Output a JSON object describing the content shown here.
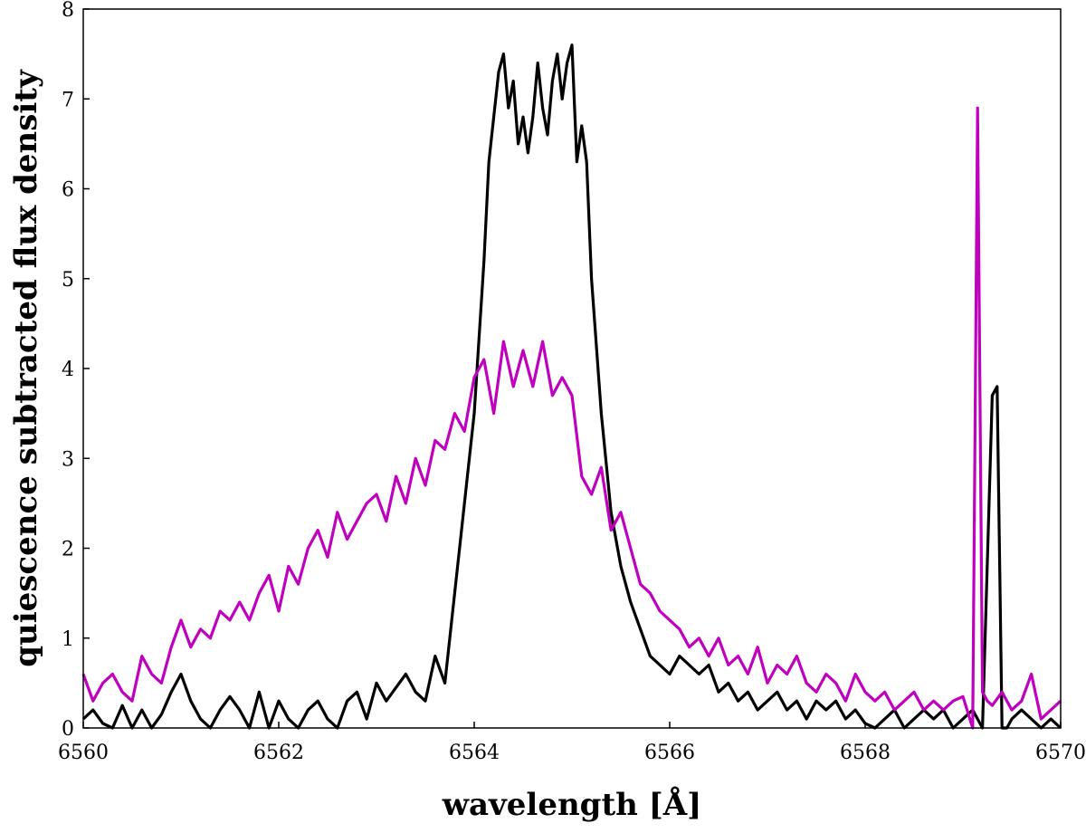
{
  "chart_data": {
    "type": "line",
    "title": "",
    "xlabel": "wavelength [Å]",
    "ylabel": "quiescence subtracted flux density",
    "xlim": [
      6560,
      6570
    ],
    "ylim": [
      0,
      8
    ],
    "xticks": [
      6560,
      6562,
      6564,
      6566,
      6568,
      6570
    ],
    "yticks": [
      0,
      1,
      2,
      3,
      4,
      5,
      6,
      7,
      8
    ],
    "grid": false,
    "legend": "none",
    "series": [
      {
        "color": "#000000",
        "x": [
          6560.0,
          6560.1,
          6560.2,
          6560.3,
          6560.4,
          6560.5,
          6560.6,
          6560.7,
          6560.8,
          6560.9,
          6561.0,
          6561.1,
          6561.2,
          6561.3,
          6561.4,
          6561.5,
          6561.6,
          6561.7,
          6561.8,
          6561.9,
          6562.0,
          6562.1,
          6562.2,
          6562.3,
          6562.4,
          6562.5,
          6562.6,
          6562.7,
          6562.8,
          6562.9,
          6563.0,
          6563.1,
          6563.2,
          6563.3,
          6563.4,
          6563.5,
          6563.6,
          6563.7,
          6563.8,
          6563.9,
          6564.0,
          6564.1,
          6564.15,
          6564.2,
          6564.25,
          6564.3,
          6564.35,
          6564.4,
          6564.45,
          6564.5,
          6564.55,
          6564.6,
          6564.65,
          6564.7,
          6564.75,
          6564.8,
          6564.85,
          6564.9,
          6564.95,
          6565.0,
          6565.05,
          6565.1,
          6565.15,
          6565.2,
          6565.3,
          6565.4,
          6565.5,
          6565.6,
          6565.7,
          6565.8,
          6565.9,
          6566.0,
          6566.1,
          6566.2,
          6566.3,
          6566.4,
          6566.5,
          6566.6,
          6566.7,
          6566.8,
          6566.9,
          6567.0,
          6567.1,
          6567.2,
          6567.3,
          6567.4,
          6567.5,
          6567.6,
          6567.7,
          6567.8,
          6567.9,
          6568.0,
          6568.1,
          6568.2,
          6568.3,
          6568.4,
          6568.5,
          6568.6,
          6568.7,
          6568.8,
          6568.9,
          6569.0,
          6569.1,
          6569.2,
          6569.3,
          6569.35,
          6569.4,
          6569.45,
          6569.5,
          6569.6,
          6569.7,
          6569.8,
          6569.9,
          6570.0
        ],
        "y": [
          0.1,
          0.2,
          0.05,
          0.0,
          0.25,
          0.0,
          0.2,
          0.0,
          0.15,
          0.4,
          0.6,
          0.3,
          0.1,
          0.0,
          0.2,
          0.35,
          0.2,
          0.0,
          0.4,
          0.0,
          0.3,
          0.1,
          0.0,
          0.2,
          0.3,
          0.1,
          0.0,
          0.3,
          0.4,
          0.1,
          0.5,
          0.3,
          0.45,
          0.6,
          0.4,
          0.3,
          0.8,
          0.5,
          1.5,
          2.5,
          3.5,
          5.2,
          6.3,
          6.8,
          7.3,
          7.5,
          6.9,
          7.2,
          6.5,
          6.8,
          6.4,
          6.8,
          7.4,
          6.9,
          6.6,
          7.2,
          7.5,
          7.0,
          7.4,
          7.6,
          6.3,
          6.7,
          6.3,
          5.0,
          3.5,
          2.4,
          1.8,
          1.4,
          1.1,
          0.8,
          0.7,
          0.6,
          0.8,
          0.7,
          0.6,
          0.7,
          0.4,
          0.5,
          0.3,
          0.4,
          0.2,
          0.3,
          0.4,
          0.2,
          0.3,
          0.1,
          0.3,
          0.2,
          0.3,
          0.1,
          0.2,
          0.05,
          0.0,
          0.1,
          0.2,
          0.0,
          0.1,
          0.2,
          0.1,
          0.2,
          0.0,
          0.1,
          0.2,
          0.0,
          3.7,
          3.8,
          0.0,
          0.0,
          0.1,
          0.2,
          0.1,
          0.0,
          0.1,
          0.0
        ]
      },
      {
        "color": "#bf00bf",
        "x": [
          6560.0,
          6560.1,
          6560.2,
          6560.3,
          6560.4,
          6560.5,
          6560.6,
          6560.7,
          6560.8,
          6560.9,
          6561.0,
          6561.1,
          6561.2,
          6561.3,
          6561.4,
          6561.5,
          6561.6,
          6561.7,
          6561.8,
          6561.9,
          6562.0,
          6562.1,
          6562.2,
          6562.3,
          6562.4,
          6562.5,
          6562.6,
          6562.7,
          6562.8,
          6562.9,
          6563.0,
          6563.1,
          6563.2,
          6563.3,
          6563.4,
          6563.5,
          6563.6,
          6563.7,
          6563.8,
          6563.9,
          6564.0,
          6564.1,
          6564.2,
          6564.3,
          6564.4,
          6564.5,
          6564.6,
          6564.7,
          6564.8,
          6564.9,
          6565.0,
          6565.1,
          6565.2,
          6565.3,
          6565.4,
          6565.5,
          6565.6,
          6565.7,
          6565.8,
          6565.9,
          6566.0,
          6566.1,
          6566.2,
          6566.3,
          6566.4,
          6566.5,
          6566.6,
          6566.7,
          6566.8,
          6566.9,
          6567.0,
          6567.1,
          6567.2,
          6567.3,
          6567.4,
          6567.5,
          6567.6,
          6567.7,
          6567.8,
          6567.9,
          6568.0,
          6568.1,
          6568.2,
          6568.3,
          6568.4,
          6568.5,
          6568.6,
          6568.7,
          6568.8,
          6568.9,
          6569.0,
          6569.1,
          6569.15,
          6569.2,
          6569.25,
          6569.3,
          6569.4,
          6569.5,
          6569.6,
          6569.7,
          6569.8,
          6569.9,
          6570.0
        ],
        "y": [
          0.6,
          0.3,
          0.5,
          0.6,
          0.4,
          0.3,
          0.8,
          0.6,
          0.5,
          0.9,
          1.2,
          0.9,
          1.1,
          1.0,
          1.3,
          1.2,
          1.4,
          1.2,
          1.5,
          1.7,
          1.3,
          1.8,
          1.6,
          2.0,
          2.2,
          1.9,
          2.4,
          2.1,
          2.3,
          2.5,
          2.6,
          2.3,
          2.8,
          2.5,
          3.0,
          2.7,
          3.2,
          3.1,
          3.5,
          3.3,
          3.9,
          4.1,
          3.5,
          4.3,
          3.8,
          4.2,
          3.8,
          4.3,
          3.7,
          3.9,
          3.7,
          2.8,
          2.6,
          2.9,
          2.2,
          2.4,
          2.0,
          1.6,
          1.5,
          1.3,
          1.2,
          1.1,
          0.9,
          1.0,
          0.8,
          1.0,
          0.7,
          0.8,
          0.6,
          0.9,
          0.5,
          0.7,
          0.6,
          0.8,
          0.5,
          0.4,
          0.6,
          0.5,
          0.3,
          0.6,
          0.4,
          0.3,
          0.4,
          0.2,
          0.3,
          0.4,
          0.2,
          0.3,
          0.2,
          0.3,
          0.35,
          0.0,
          6.9,
          0.4,
          0.3,
          0.25,
          0.4,
          0.2,
          0.3,
          0.6,
          0.1,
          0.2,
          0.3
        ]
      }
    ]
  }
}
